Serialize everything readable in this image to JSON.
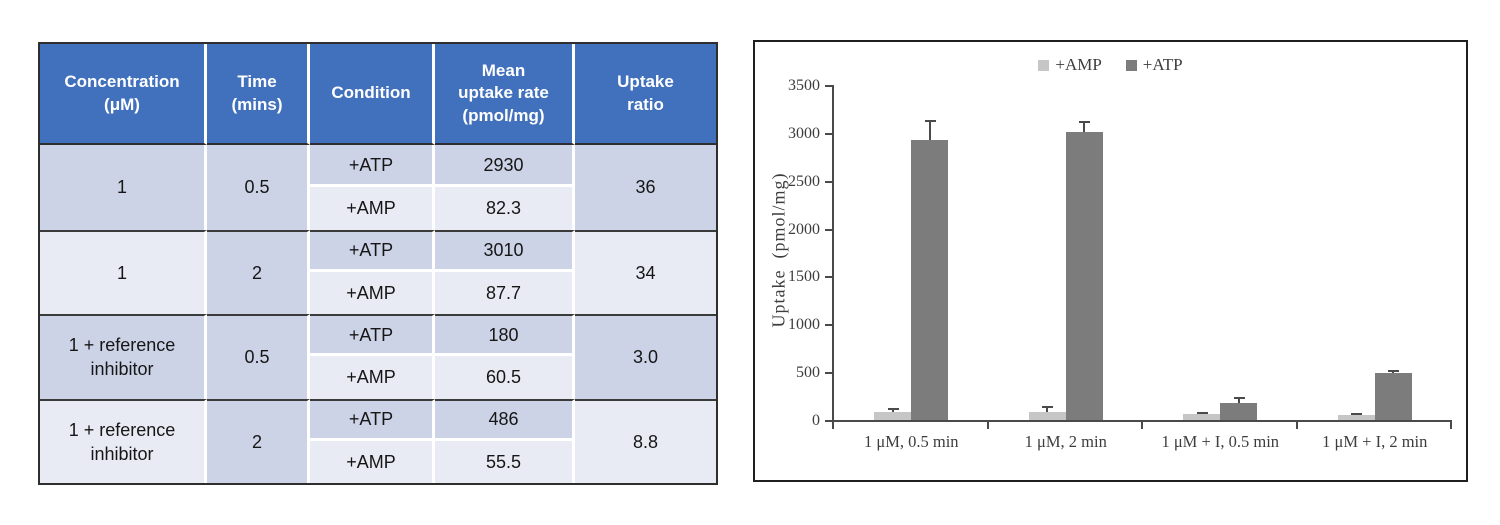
{
  "table": {
    "headers": [
      "Concentration\n(μM)",
      "Time\n(mins)",
      "Condition",
      "Mean\nuptake rate\n(pmol/mg)",
      "Uptake\nratio"
    ],
    "groups": [
      {
        "concentration": "1",
        "time": "0.5",
        "atp_condition": "+ATP",
        "atp_value": "2930",
        "amp_condition": "+AMP",
        "amp_value": "82.3",
        "ratio": "36"
      },
      {
        "concentration": "1",
        "time": "2",
        "atp_condition": "+ATP",
        "atp_value": "3010",
        "amp_condition": "+AMP",
        "amp_value": "87.7",
        "ratio": "34"
      },
      {
        "concentration": "1 + reference\ninhibitor",
        "time": "0.5",
        "atp_condition": "+ATP",
        "atp_value": "180",
        "amp_condition": "+AMP",
        "amp_value": "60.5",
        "ratio": "3.0"
      },
      {
        "concentration": "1 + reference\ninhibitor",
        "time": "2",
        "atp_condition": "+ATP",
        "atp_value": "486",
        "amp_condition": "+AMP",
        "amp_value": "55.5",
        "ratio": "8.8"
      }
    ]
  },
  "colors": {
    "header_blue": "#4170bc",
    "band_dark": "#cdd3e7",
    "band_light": "#e9ebf4",
    "amp_gray": "#c6c6c6",
    "atp_gray": "#7c7c7c",
    "axis_gray": "#4a4a4a"
  },
  "chart_data": {
    "type": "bar",
    "title": "",
    "categories": [
      "1 μM, 0.5 min",
      "1 μM, 2 min",
      "1 μM + I, 0.5 min",
      "1 μM + I, 2 min"
    ],
    "series": [
      {
        "name": "+AMP",
        "color": "#c6c6c6",
        "values": [
          82.3,
          87.7,
          60.5,
          55.5
        ],
        "errors": [
          33,
          52,
          12,
          12
        ]
      },
      {
        "name": "+ATP",
        "color": "#7c7c7c",
        "values": [
          2930,
          3010,
          180,
          486
        ],
        "errors": [
          195,
          100,
          50,
          30
        ]
      }
    ],
    "xlabel": "",
    "ylabel": "Uptake  (pmol/mg)",
    "ylim": [
      0,
      3500
    ],
    "ytick_step": 500,
    "grid": false,
    "legend_position": "top-center",
    "error_bars": "upper"
  }
}
